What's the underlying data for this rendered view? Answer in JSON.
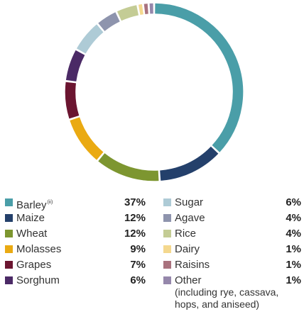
{
  "chart_data": {
    "type": "pie",
    "style": "donut",
    "slices": [
      {
        "label": "Barley",
        "footnote": "(ii)",
        "value": 37,
        "display": "37%",
        "color": "#4a9ea8"
      },
      {
        "label": "Maize",
        "value": 12,
        "display": "12%",
        "color": "#24406b"
      },
      {
        "label": "Wheat",
        "value": 12,
        "display": "12%",
        "color": "#7d9630"
      },
      {
        "label": "Molasses",
        "value": 9,
        "display": "9%",
        "color": "#eaaa12"
      },
      {
        "label": "Grapes",
        "value": 7,
        "display": "7%",
        "color": "#6b1530"
      },
      {
        "label": "Sorghum",
        "value": 6,
        "display": "6%",
        "color": "#4b2a66"
      },
      {
        "label": "Sugar",
        "value": 6,
        "display": "6%",
        "color": "#aecbd6"
      },
      {
        "label": "Agave",
        "value": 4,
        "display": "4%",
        "color": "#8e94ad"
      },
      {
        "label": "Rice",
        "value": 4,
        "display": "4%",
        "color": "#c4cc95"
      },
      {
        "label": "Dairy",
        "value": 1,
        "display": "1%",
        "color": "#f4d88e"
      },
      {
        "label": "Raisins",
        "value": 1,
        "display": "1%",
        "color": "#a9727e"
      },
      {
        "label": "Other",
        "value": 1,
        "display": "1%",
        "color": "#9587ab",
        "note": "(including rye, cassava, hops, and aniseed)"
      }
    ],
    "legend_placement": "bottom"
  }
}
